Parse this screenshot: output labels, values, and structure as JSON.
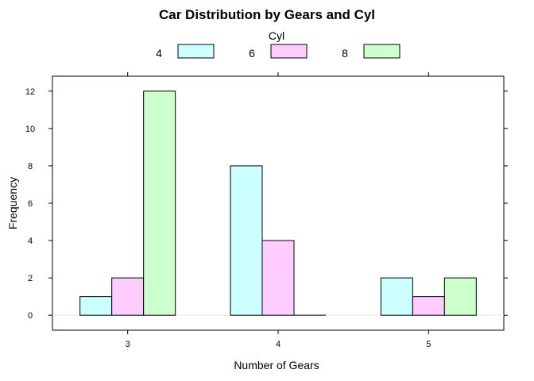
{
  "chart_data": {
    "type": "bar",
    "title": "Car Distribution by Gears and Cyl",
    "xlabel": "Number of Gears",
    "ylabel": "Frequency",
    "categories": [
      "3",
      "4",
      "5"
    ],
    "series": [
      {
        "name": "4",
        "values": [
          1,
          8,
          2
        ],
        "color": "#ccffff"
      },
      {
        "name": "6",
        "values": [
          2,
          4,
          1
        ],
        "color": "#ffccff"
      },
      {
        "name": "8",
        "values": [
          12,
          0,
          2
        ],
        "color": "#ccffcc"
      }
    ],
    "legend_title": "Cyl",
    "legend_position": "top",
    "ylim": [
      -0.8,
      12.8
    ],
    "yticks": [
      0,
      2,
      4,
      6,
      8,
      10,
      12
    ],
    "grid": false
  }
}
